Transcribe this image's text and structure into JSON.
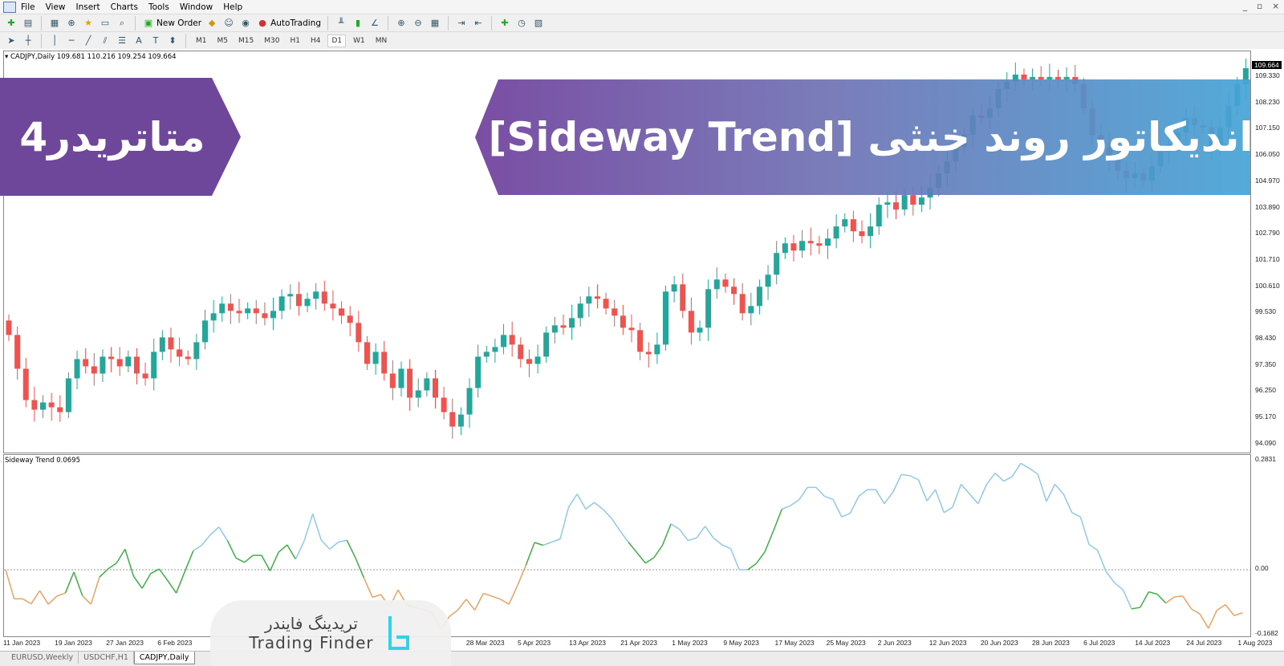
{
  "menu": [
    "File",
    "View",
    "Insert",
    "Charts",
    "Tools",
    "Window",
    "Help"
  ],
  "toolbar": {
    "new_order": "New Order",
    "autotrading": "AutoTrading",
    "timeframes": [
      "M1",
      "M5",
      "M15",
      "M30",
      "H1",
      "H4",
      "D1",
      "W1",
      "MN"
    ],
    "active_timeframe": "D1"
  },
  "chart_header": "CADJPY,Daily  109.681 110.216 109.254 109.664",
  "current_price": "109.664",
  "price_axis": [
    "109.330",
    "108.230",
    "107.150",
    "106.050",
    "104.970",
    "103.890",
    "102.790",
    "101.710",
    "100.610",
    "99.530",
    "98.430",
    "97.350",
    "96.250",
    "95.170",
    "94.090"
  ],
  "indicator": {
    "label": "Sideway Trend 0.0695",
    "axis": [
      "0.2831",
      "0.00",
      "-0.1682"
    ]
  },
  "date_axis": [
    "11 Jan 2023",
    "19 Jan 2023",
    "27 Jan 2023",
    "6 Feb 2023",
    "",
    "",
    "",
    "",
    "",
    "28 Mar 2023",
    "5 Apr 2023",
    "13 Apr 2023",
    "21 Apr 2023",
    "1 May 2023",
    "9 May 2023",
    "17 May 2023",
    "25 May 2023",
    "2 Jun 2023",
    "12 Jun 2023",
    "20 Jun 2023",
    "28 Jun 2023",
    "6 Jul 2023",
    "14 Jul 2023",
    "24 Jul 2023",
    "1 Aug 2023"
  ],
  "tabs": [
    {
      "label": "EURUSD,Weekly",
      "active": false
    },
    {
      "label": "USDCHF,H1",
      "active": false
    },
    {
      "label": "CADJPY,Daily",
      "active": true
    }
  ],
  "banner": {
    "left": "متاتریدر4",
    "right": "اندیکاتور روند خنثی [Sideway Trend]"
  },
  "watermark": {
    "fa": "تریدینگ فایندر",
    "en": "Trading Finder"
  },
  "colors": {
    "bull": "#26a69a",
    "bear": "#ef5350",
    "ind_up": "#8ec9e8",
    "ind_mid": "#3cb043",
    "ind_down": "#e8a262"
  },
  "chart_data": [
    {
      "type": "candlestick",
      "symbol": "CADJPY",
      "timeframe": "Daily",
      "ylim": [
        94.09,
        109.664
      ],
      "close": [
        98.6,
        97.2,
        95.9,
        95.5,
        95.8,
        95.6,
        95.4,
        96.8,
        97.6,
        97.3,
        97.0,
        97.7,
        97.6,
        97.3,
        97.7,
        97.0,
        96.8,
        97.9,
        98.5,
        98.0,
        97.7,
        97.6,
        98.3,
        99.2,
        99.5,
        99.9,
        99.6,
        99.5,
        99.7,
        99.5,
        99.3,
        99.6,
        100.2,
        100.3,
        99.8,
        100.1,
        100.4,
        99.9,
        99.7,
        99.4,
        99.1,
        98.3,
        97.4,
        97.9,
        97.0,
        96.4,
        97.2,
        96.0,
        96.3,
        96.8,
        96.0,
        95.4,
        94.8,
        95.3,
        96.4,
        97.7,
        97.9,
        98.1,
        98.6,
        98.2,
        97.6,
        97.4,
        97.7,
        98.7,
        99.0,
        98.9,
        99.3,
        99.9,
        100.2,
        100.1,
        99.7,
        99.4,
        98.9,
        98.8,
        97.9,
        97.8,
        98.2,
        100.4,
        100.7,
        99.6,
        98.7,
        98.9,
        100.5,
        100.9,
        100.6,
        100.3,
        99.5,
        99.8,
        100.6,
        101.1,
        102.0,
        102.4,
        102.1,
        102.5,
        102.4,
        102.3,
        102.6,
        103.1,
        103.4,
        102.9,
        102.7,
        103.1,
        104.0,
        104.1,
        103.8,
        104.4,
        104.0,
        104.3,
        104.7,
        105.3,
        105.8,
        106.4,
        106.9,
        107.7,
        107.6,
        108.0,
        108.8,
        109.1,
        109.4,
        109.2,
        109.3,
        109.2,
        109.3,
        109.2,
        109.3,
        109.0,
        108.0,
        106.9,
        106.4,
        105.9,
        105.4,
        105.1,
        105.3,
        105.0,
        105.6,
        106.2,
        106.5,
        107.0,
        107.6,
        107.3,
        107.2,
        106.3,
        107.2,
        108.1,
        109.0,
        109.664
      ]
    },
    {
      "type": "line",
      "series_label": "Sideway Trend",
      "ylim": [
        -0.1682,
        0.2831
      ],
      "values": [
        0.0,
        -0.075,
        -0.075,
        -0.088,
        -0.054,
        -0.089,
        -0.068,
        -0.06,
        -0.006,
        -0.067,
        -0.089,
        -0.019,
        0.002,
        0.017,
        0.053,
        -0.017,
        -0.048,
        -0.01,
        0.002,
        -0.028,
        -0.06,
        -0.005,
        0.049,
        0.063,
        0.09,
        0.11,
        0.075,
        0.03,
        0.019,
        0.037,
        0.037,
        -0.003,
        0.045,
        0.064,
        0.027,
        0.074,
        0.144,
        0.076,
        0.053,
        0.071,
        0.076,
        0.031,
        -0.021,
        -0.071,
        -0.064,
        -0.097,
        -0.052,
        -0.09,
        -0.097,
        -0.103,
        -0.111,
        -0.154,
        -0.121,
        -0.104,
        -0.076,
        -0.104,
        -0.061,
        -0.068,
        -0.076,
        -0.089,
        -0.041,
        0.012,
        0.07,
        0.063,
        0.071,
        0.079,
        0.161,
        0.195,
        0.156,
        0.173,
        0.156,
        0.133,
        0.101,
        0.071,
        0.044,
        0.017,
        0.031,
        0.063,
        0.118,
        0.104,
        0.075,
        0.082,
        0.112,
        0.081,
        0.064,
        0.054,
        0.0,
        0.0,
        0.016,
        0.046,
        0.1,
        0.156,
        0.165,
        0.18,
        0.212,
        0.212,
        0.189,
        0.181,
        0.136,
        0.145,
        0.189,
        0.206,
        0.206,
        0.17,
        0.199,
        0.245,
        0.242,
        0.232,
        0.177,
        0.206,
        0.147,
        0.161,
        0.22,
        0.195,
        0.17,
        0.22,
        0.249,
        0.228,
        0.24,
        0.274,
        0.261,
        0.246,
        0.176,
        0.22,
        0.195,
        0.147,
        0.136,
        0.065,
        0.05,
        -0.005,
        -0.034,
        -0.052,
        -0.101,
        -0.097,
        -0.057,
        -0.063,
        -0.086,
        -0.07,
        -0.068,
        -0.101,
        -0.114,
        -0.151,
        -0.104,
        -0.09,
        -0.118,
        -0.111
      ],
      "segment_state": "ooooooooggoogggggggggggbbbbggggggggbbbbbbggooooogoooooooooooooggbbbbbbbbbbgggggbbbbbbbbbggggbbbbbbbbbbbbbbbbbbbbbbbbbbbbbbbbbbbbbbbbbggggooooooooooooooooo",
      "zero_line": 0
    }
  ]
}
